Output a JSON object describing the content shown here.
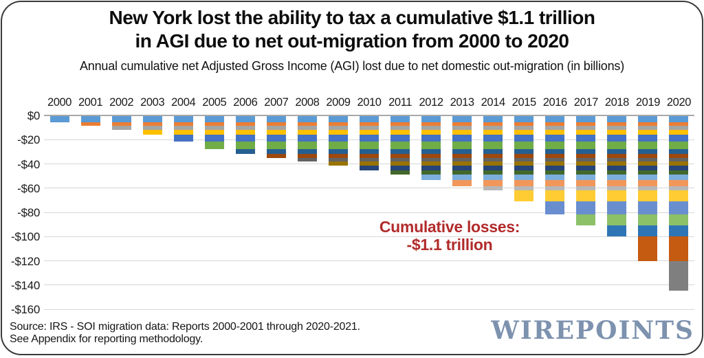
{
  "header": {
    "title_line1": "New York lost the ability to tax a cumulative $1.1 trillion",
    "title_line2": "in AGI due to net out-migration from 2000 to 2020",
    "subtitle": "Annual cumulative net Adjusted Gross Income (AGI) lost due to net domestic out-migration (in billions)"
  },
  "annotation": {
    "line1": "Cumulative losses:",
    "line2": "-$1.1 trillion",
    "color": "#B22B2B"
  },
  "footer": {
    "source_line1": "Source: IRS - SOI migration data: Reports 2000-2001 through 2020-2021.",
    "source_line2": "See Appendix for reporting methodology.",
    "logo_text": "WIREPOINTS",
    "logo_color": "#7D92AE"
  },
  "chart_data": {
    "type": "bar",
    "stacked": true,
    "title": "New York lost the ability to tax a cumulative $1.1 trillion in AGI due to net out-migration from 2000 to 2020",
    "subtitle": "Annual cumulative net Adjusted Gross Income (AGI) lost due to net domestic out-migration (in billions)",
    "categories": [
      "2000",
      "2001",
      "2002",
      "2003",
      "2004",
      "2005",
      "2006",
      "2007",
      "2008",
      "2009",
      "2010",
      "2011",
      "2012",
      "2013",
      "2014",
      "2015",
      "2016",
      "2017",
      "2018",
      "2019",
      "2020"
    ],
    "annual_loss_billions": [
      5.0,
      3.0,
      3.5,
      4.0,
      5.5,
      6.0,
      4.0,
      3.5,
      3.0,
      3.5,
      4.0,
      3.0,
      5.0,
      5.0,
      3.5,
      9.0,
      10.5,
      9.5,
      9.0,
      20.0,
      24.5
    ],
    "cumulative_billions": [
      -5.0,
      -8.0,
      -11.5,
      -15.5,
      -21.0,
      -27.0,
      -31.0,
      -34.5,
      -37.5,
      -41.0,
      -45.0,
      -48.0,
      -53.0,
      -58.0,
      -61.5,
      -70.5,
      -81.0,
      -90.5,
      -99.5,
      -119.5,
      -144.0
    ],
    "cumulative_total": "-$1.1 trillion",
    "stack_note": "Bar for year Y stacks the annual losses of every year 2000 through Y, from $0 downward in chronological order; segment for cohort year k keeps color k in every bar.",
    "segment_colors": [
      "#5B9BD5",
      "#ED7D31",
      "#A5A5A5",
      "#FFC000",
      "#4472C4",
      "#70AD47",
      "#255E91",
      "#9E480E",
      "#636363",
      "#997300",
      "#264478",
      "#43682B",
      "#7CAFDD",
      "#F1975A",
      "#B7B7B7",
      "#FFCD33",
      "#698ED0",
      "#8CC168",
      "#2E75B6",
      "#C55A11",
      "#7F7F7F"
    ],
    "y_ticks": [
      "$0",
      "-$20",
      "-$40",
      "-$60",
      "-$80",
      "-$100",
      "-$120",
      "-$140",
      "-$160"
    ],
    "y_tick_values": [
      0,
      -20,
      -40,
      -60,
      -80,
      -100,
      -120,
      -140,
      -160
    ],
    "ylim": [
      0,
      -160
    ],
    "grid": true,
    "legend": "none",
    "x_axis_position": "top"
  }
}
